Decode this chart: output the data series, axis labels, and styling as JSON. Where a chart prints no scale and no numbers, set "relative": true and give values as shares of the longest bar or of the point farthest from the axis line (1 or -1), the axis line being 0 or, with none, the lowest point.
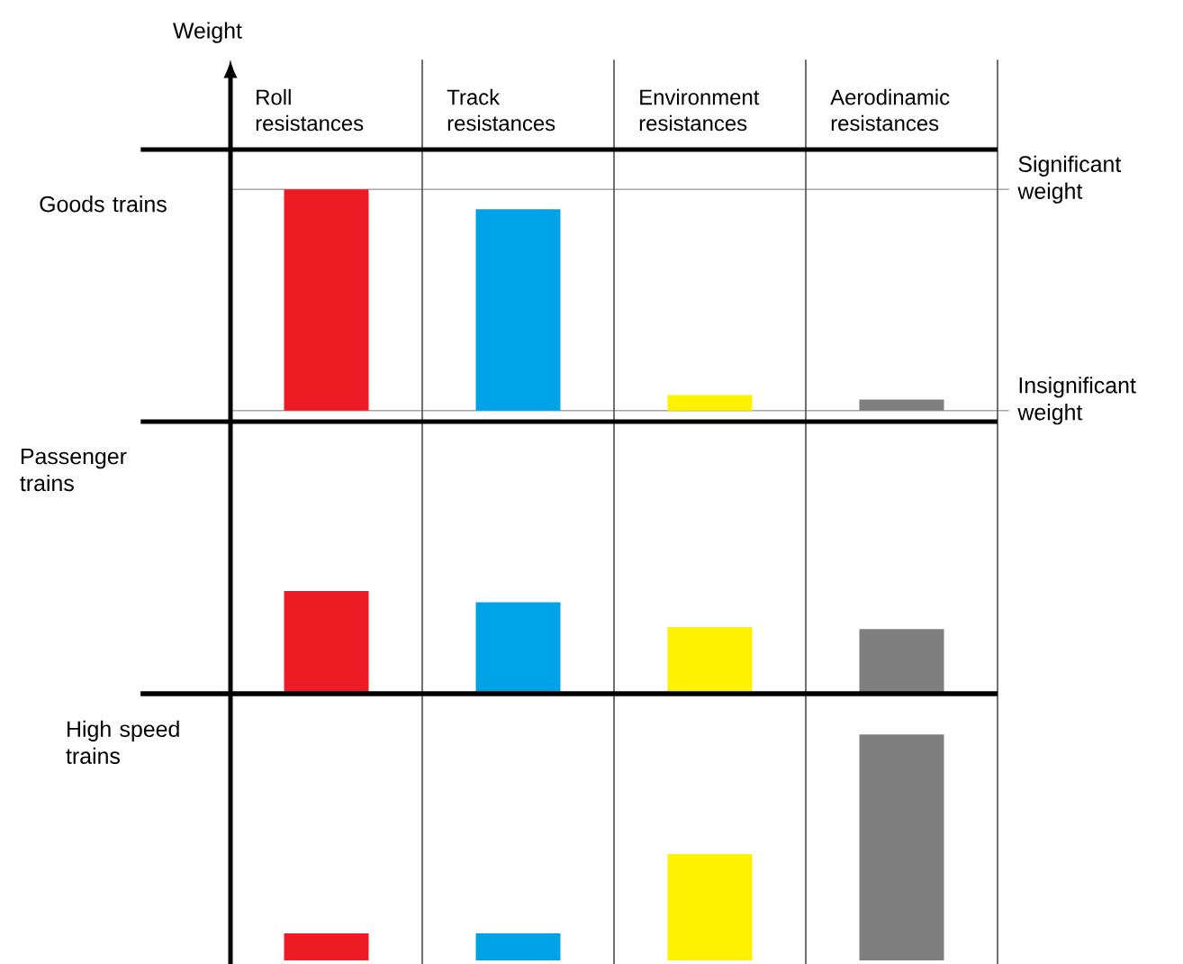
{
  "chart_data": [
    {
      "type": "bar",
      "title": "Goods trains",
      "ylabel": "Weight",
      "categories": [
        "Roll resistances",
        "Track resistances",
        "Environment resistances",
        "Aerodinamic resistances"
      ],
      "values": [
        1,
        0.91,
        0.07,
        0.05
      ],
      "colors": [
        "#ed1c24",
        "#00a2e8",
        "#fff200",
        "#7f7f7f"
      ],
      "relative": true,
      "ref_lines": [
        {
          "axis": "y",
          "value": 1,
          "label": "Significant weight",
          "color": "#a6a6a6"
        },
        {
          "axis": "y",
          "value": 0,
          "label": "Insignificant weight",
          "color": "#a6a6a6"
        }
      ]
    },
    {
      "type": "bar",
      "title": "Passenger trains",
      "categories": [
        null,
        null,
        null,
        null
      ],
      "values": [
        1,
        0.89,
        0.65,
        0.63
      ],
      "colors": [
        "#ed1c24",
        "#00a2e8",
        "#fff200",
        "#7f7f7f"
      ],
      "relative": true,
      "tick_labels": false
    },
    {
      "type": "bar",
      "title": "High speed trains",
      "categories": [
        null,
        null,
        null,
        null
      ],
      "values": [
        0.12,
        0.12,
        0.47,
        1
      ],
      "colors": [
        "#ed1c24",
        "#00a2e8",
        "#fff200",
        "#7f7f7f"
      ],
      "relative": true,
      "tick_labels": false
    }
  ]
}
